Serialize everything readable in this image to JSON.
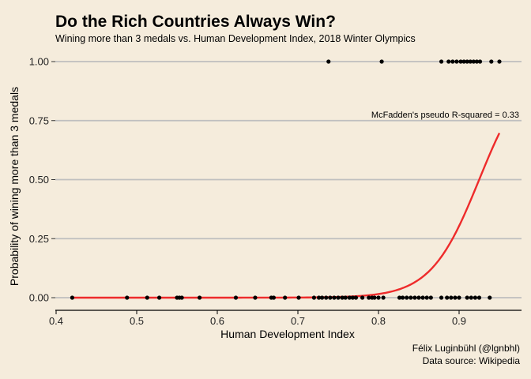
{
  "chart_data": {
    "type": "scatter",
    "title": "Do the Rich Countries Always Win?",
    "subtitle": "Wining more than 3 medals vs. Human Development Index, 2018 Winter Olympics",
    "xlabel": "Human Development Index",
    "ylabel": "Probability of wining more than 3 medals",
    "xlim": [
      0.4,
      0.96
    ],
    "ylim": [
      0,
      1
    ],
    "x_ticks": [
      0.4,
      0.5,
      0.6,
      0.7,
      0.8,
      0.9
    ],
    "x_tick_labels": [
      "0.4",
      "0.5",
      "0.6",
      "0.7",
      "0.8",
      "0.9"
    ],
    "y_ticks": [
      0,
      0.25,
      0.5,
      0.75,
      1
    ],
    "y_tick_labels": [
      "0.00",
      "0.25",
      "0.50",
      "0.75",
      "1.00"
    ],
    "grid": "horizontal major",
    "annotation": "McFadden's pseudo R-squared = 0.33",
    "caption": [
      "Félix Luginbühl (@lgnbhl)",
      "Data source: Wikipedia"
    ],
    "colors": {
      "points": "#000000",
      "curve": "#ee2b2b",
      "grid": "#bfbfbf",
      "background": "#f5ecdc"
    },
    "series": [
      {
        "kind": "points",
        "x": [
          0.42,
          0.488,
          0.513,
          0.528,
          0.55,
          0.553,
          0.556,
          0.578,
          0.623,
          0.647,
          0.667,
          0.67,
          0.684,
          0.701,
          0.72,
          0.726,
          0.73,
          0.735,
          0.74,
          0.745,
          0.75,
          0.755,
          0.759,
          0.764,
          0.768,
          0.772,
          0.78,
          0.788,
          0.792,
          0.795,
          0.8,
          0.806,
          0.826,
          0.83,
          0.835,
          0.84,
          0.845,
          0.85,
          0.855,
          0.86,
          0.865,
          0.878,
          0.885,
          0.89,
          0.895,
          0.9,
          0.91,
          0.915,
          0.92,
          0.925,
          0.938,
          0.738,
          0.804,
          0.878,
          0.887,
          0.892,
          0.897,
          0.902,
          0.906,
          0.91,
          0.914,
          0.918,
          0.922,
          0.926,
          0.94,
          0.95
        ],
        "y": [
          0,
          0,
          0,
          0,
          0,
          0,
          0,
          0,
          0,
          0,
          0,
          0,
          0,
          0,
          0,
          0,
          0,
          0,
          0,
          0,
          0,
          0,
          0,
          0,
          0,
          0,
          0,
          0,
          0,
          0,
          0,
          0,
          0,
          0,
          0,
          0,
          0,
          0,
          0,
          0,
          0,
          0,
          0,
          0,
          0,
          0,
          0,
          0,
          0,
          0,
          0,
          1,
          1,
          1,
          1,
          1,
          1,
          1,
          1,
          1,
          1,
          1,
          1,
          1,
          1,
          1
        ]
      },
      {
        "kind": "logistic-curve",
        "x": [
          0.42,
          0.5,
          0.6,
          0.7,
          0.75,
          0.8,
          0.85,
          0.9,
          0.95
        ],
        "y": [
          0.0,
          0.0,
          0.0,
          0.01,
          0.03,
          0.09,
          0.26,
          0.48,
          0.68
        ]
      }
    ]
  }
}
